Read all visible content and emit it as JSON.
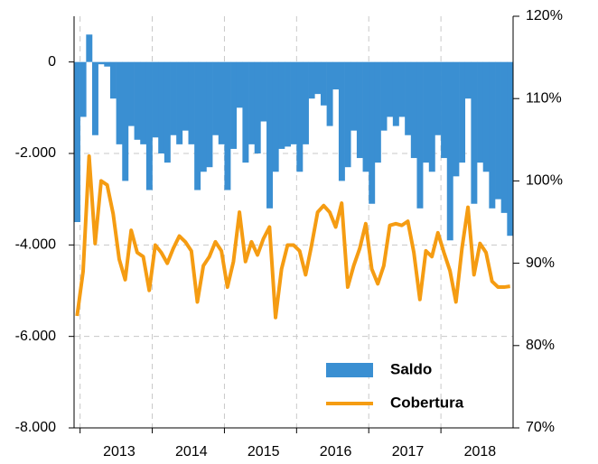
{
  "chart_data": {
    "type": "bar_line",
    "categories": [
      null,
      null,
      null,
      null,
      null,
      null,
      null,
      "2013",
      null,
      null,
      null,
      null,
      null,
      null,
      null,
      null,
      null,
      null,
      null,
      "2014",
      null,
      null,
      null,
      null,
      null,
      null,
      null,
      null,
      null,
      null,
      null,
      "2015",
      null,
      null,
      null,
      null,
      null,
      null,
      null,
      null,
      null,
      null,
      null,
      "2016",
      null,
      null,
      null,
      null,
      null,
      null,
      null,
      null,
      null,
      null,
      null,
      "2017",
      null,
      null,
      null,
      null,
      null,
      null,
      null,
      null,
      null,
      null,
      null,
      "2018",
      null,
      null,
      null,
      null,
      null
    ],
    "series": [
      {
        "name": "Saldo",
        "type": "bar",
        "axis": "y",
        "color": "#3a8fd2",
        "values": [
          -3500,
          -1200,
          600,
          -1600,
          -50,
          -100,
          -800,
          -1800,
          -2600,
          -1400,
          -1700,
          -1800,
          -2800,
          -1650,
          -2000,
          -2200,
          -1600,
          -1800,
          -1500,
          -1800,
          -2800,
          -2400,
          -2300,
          -1600,
          -1800,
          -2800,
          -1900,
          -1000,
          -2200,
          -1800,
          -2000,
          -1300,
          -3200,
          -2400,
          -1900,
          -1850,
          -1800,
          -2400,
          -1800,
          -800,
          -700,
          -950,
          -1400,
          -600,
          -2600,
          -2300,
          -1500,
          -2100,
          -2400,
          -3100,
          -2200,
          -1500,
          -1200,
          -1400,
          -1200,
          -1600,
          -2100,
          -3200,
          -2200,
          -2400,
          -1600,
          -2100,
          -3900,
          -2500,
          -2200,
          -800,
          -3100,
          -2200,
          -2400,
          -3200,
          -3000,
          -3300,
          -3800
        ]
      },
      {
        "name": "Cobertura",
        "type": "line",
        "axis": "y2",
        "color": "#f59c12",
        "values": [
          83.6,
          89,
          103,
          92.4,
          100,
          99.5,
          96,
          90.5,
          88,
          94,
          91.3,
          90.8,
          86.7,
          92.2,
          91.3,
          90,
          91.8,
          93.3,
          92.6,
          91.5,
          85.3,
          89.7,
          90.8,
          92.6,
          91.5,
          87.1,
          90.2,
          96.2,
          90.2,
          92.6,
          91,
          93,
          94.4,
          83.4,
          89.3,
          92.2,
          92.2,
          91.5,
          88.6,
          92.2,
          96.2,
          97,
          96.2,
          94.4,
          97.3,
          87.1,
          89.7,
          91.8,
          94.8,
          89.3,
          87.5,
          89.7,
          94.6,
          94.8,
          94.6,
          95.1,
          91.3,
          85.6,
          91.5,
          90.8,
          93.7,
          91.3,
          89.1,
          85.3,
          91.8,
          96.8,
          88.6,
          92.4,
          91.3,
          87.8,
          87.1,
          87.1,
          87.2
        ]
      }
    ],
    "ylim": [
      -8000,
      1000
    ],
    "yticks": [
      {
        "value": -8000,
        "label": "-8.000"
      },
      {
        "value": -6000,
        "label": "-6.000"
      },
      {
        "value": -4000,
        "label": "-4.000"
      },
      {
        "value": -2000,
        "label": "-2.000"
      },
      0
    ],
    "y2lim": [
      70,
      120
    ],
    "y2ticks": [
      {
        "value": 70,
        "label": "70%"
      },
      {
        "value": 80,
        "label": "80%"
      },
      {
        "value": 90,
        "label": "90%"
      },
      {
        "value": 100,
        "label": "100%"
      },
      {
        "value": 110,
        "label": "110%"
      },
      {
        "value": 120,
        "label": "120%"
      }
    ],
    "grid": true,
    "legend": "lower right"
  }
}
